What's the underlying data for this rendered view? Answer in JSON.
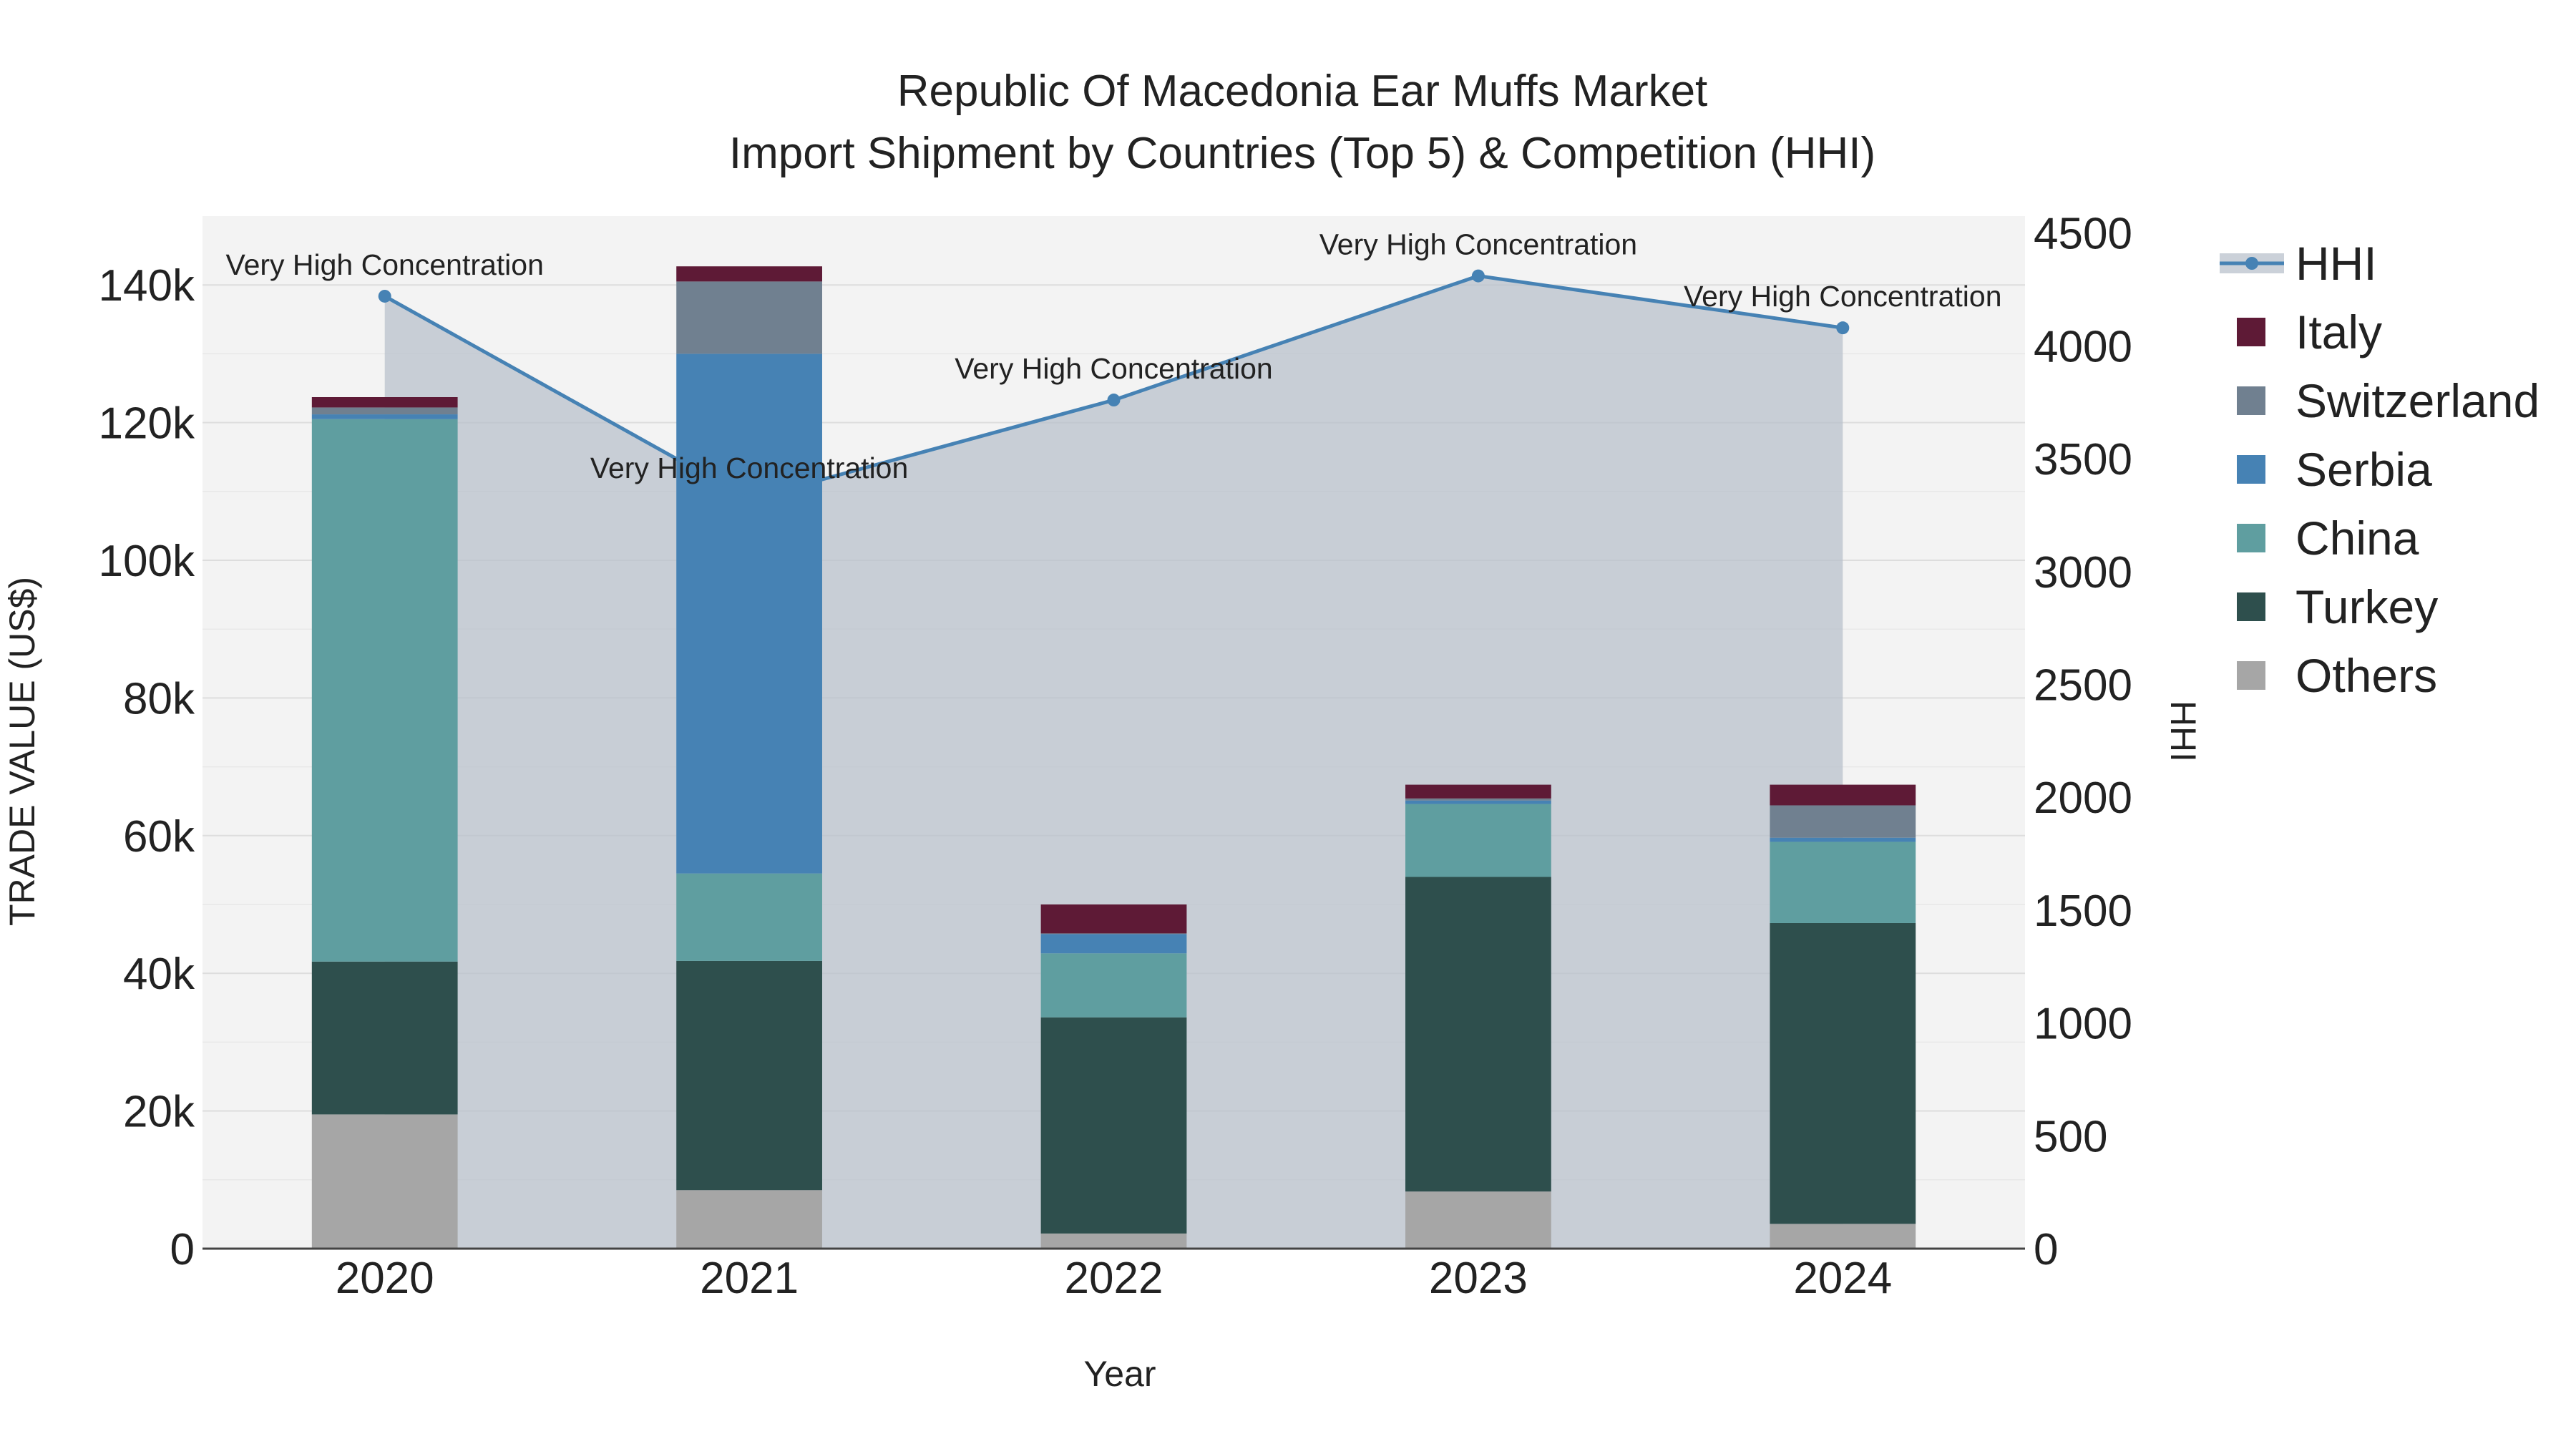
{
  "chart_data": {
    "type": "bar",
    "stacked": true,
    "title": {
      "line1": "Republic Of Macedonia Ear Muffs Market",
      "line2": "Import Shipment by Countries (Top 5) & Competition (HHI)"
    },
    "xlabel": "Year",
    "ylabel": "TRADE VALUE (US$)",
    "y2label": "HHI",
    "categories": [
      "2020",
      "2021",
      "2022",
      "2023",
      "2024"
    ],
    "ylim": [
      0,
      150000
    ],
    "y_ticks": [
      0,
      20000,
      40000,
      60000,
      80000,
      100000,
      120000,
      140000
    ],
    "y_tick_labels": [
      "0",
      "20k",
      "40k",
      "60k",
      "80k",
      "100k",
      "120k",
      "140k"
    ],
    "y2lim": [
      0,
      4575
    ],
    "y2_ticks": [
      0,
      500,
      1000,
      1500,
      2000,
      2500,
      3000,
      3500,
      4000,
      4500
    ],
    "y2_tick_labels": [
      "0",
      "500",
      "1000",
      "1500",
      "2000",
      "2500",
      "3000",
      "3500",
      "4000",
      "4500"
    ],
    "series": [
      {
        "name": "Others",
        "color": "#a6a6a6",
        "values": [
          19500,
          8500,
          2200,
          8300,
          3600
        ]
      },
      {
        "name": "Turkey",
        "color": "#2e4f4d",
        "values": [
          22200,
          33300,
          31400,
          45700,
          43700
        ]
      },
      {
        "name": "China",
        "color": "#5f9ea0",
        "values": [
          78800,
          12700,
          9300,
          10600,
          11800
        ]
      },
      {
        "name": "Serbia",
        "color": "#4682b4",
        "values": [
          700,
          75500,
          2800,
          500,
          600
        ]
      },
      {
        "name": "Switzerland",
        "color": "#708090",
        "values": [
          1000,
          10500,
          100,
          300,
          4700
        ]
      },
      {
        "name": "Italy",
        "color": "#5e1a36",
        "values": [
          1500,
          2200,
          4200,
          2000,
          3000
        ]
      }
    ],
    "hhi": {
      "name": "HHI",
      "color": "#4682b4",
      "values": [
        4220,
        3320,
        3760,
        4310,
        4080
      ],
      "labels": [
        "Very High Concentration",
        "Very High Concentration",
        "Very High Concentration",
        "Very High Concentration",
        "Very High Concentration"
      ]
    },
    "legend_order": [
      "HHI",
      "Italy",
      "Switzerland",
      "Serbia",
      "China",
      "Turkey",
      "Others"
    ],
    "legend_position": "right",
    "grid": true
  }
}
